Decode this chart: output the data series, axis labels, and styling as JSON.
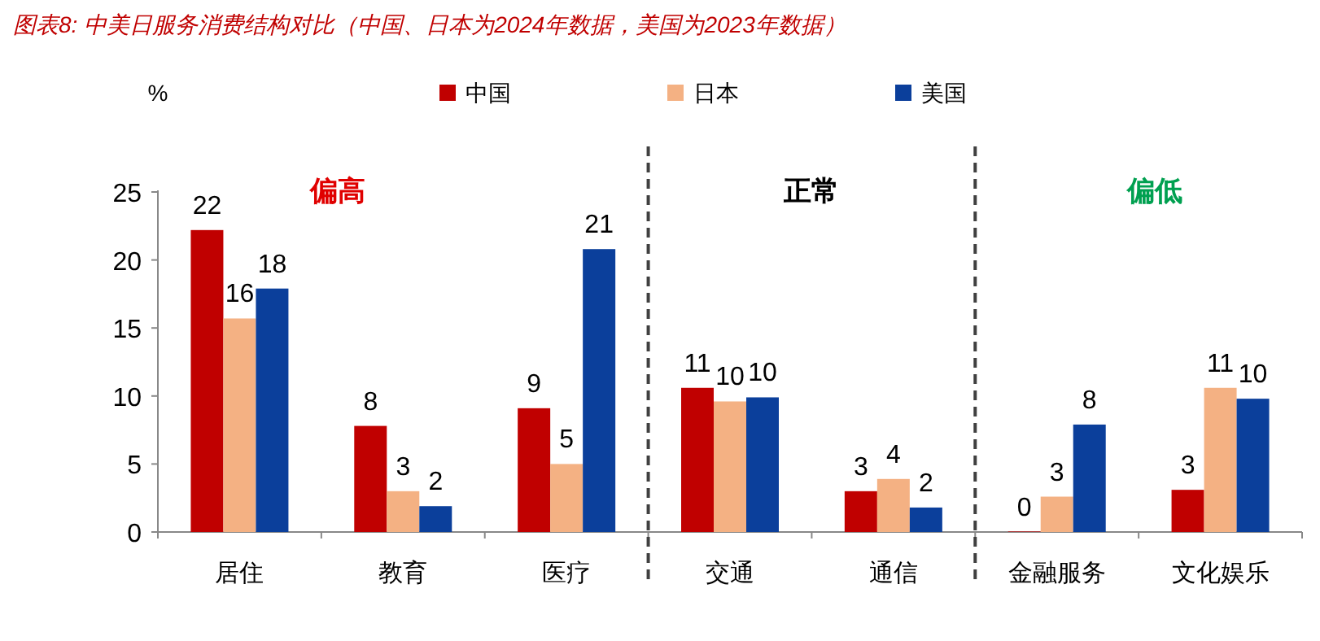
{
  "chart_data": {
    "type": "bar",
    "title": "图表8:  中美日服务消费结构对比（中国、日本为2024年数据，美国为2023年数据）",
    "ylabel": "%",
    "categories": [
      "居住",
      "教育",
      "医疗",
      "交通",
      "通信",
      "金融服务",
      "文化娱乐"
    ],
    "series": [
      {
        "name": "中国",
        "color": "#c00000",
        "values": [
          22.2,
          7.8,
          9.1,
          10.6,
          3.0,
          0,
          3.1
        ],
        "value_labels": [
          "22",
          "8",
          "9",
          "11",
          "3",
          "0",
          "3"
        ]
      },
      {
        "name": "日本",
        "color": "#f4b183",
        "values": [
          15.7,
          3.0,
          5.0,
          9.6,
          3.9,
          2.6,
          10.6
        ],
        "value_labels": [
          "16",
          "3",
          "5",
          "10",
          "4",
          "3",
          "11"
        ]
      },
      {
        "name": "美国",
        "color": "#0b3f9b",
        "values": [
          17.9,
          1.9,
          20.8,
          9.9,
          1.8,
          7.9,
          9.8
        ],
        "value_labels": [
          "18",
          "2",
          "21",
          "10",
          "2",
          "8",
          "10"
        ]
      }
    ],
    "ylim": [
      0,
      25
    ],
    "yticks": [
      0,
      5,
      10,
      15,
      20,
      25
    ],
    "legend": "top",
    "annotations": [
      "偏高",
      "正常",
      "偏低"
    ]
  }
}
